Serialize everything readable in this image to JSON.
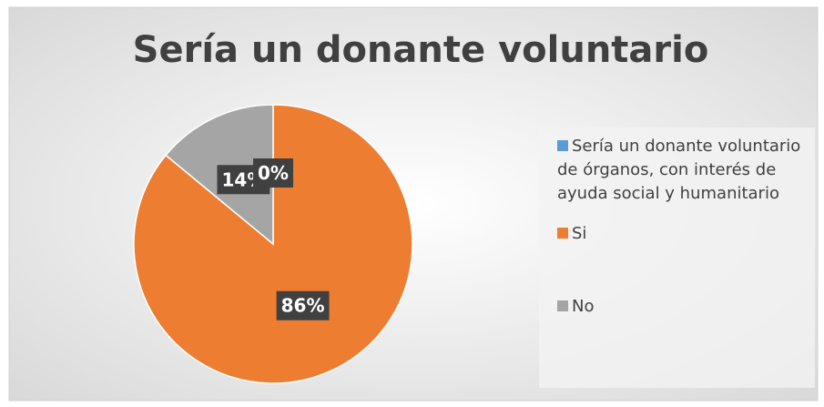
{
  "chart_data": {
    "type": "pie",
    "title": "Sería un donante voluntario",
    "categories": [
      "Sería un donante voluntario de órganos, con interés de ayuda social y humanitario",
      "Si",
      "No"
    ],
    "values": [
      0,
      86,
      14
    ],
    "value_labels": [
      "0%",
      "86%",
      "14%"
    ],
    "colors": [
      "#5b9bd5",
      "#ed7d31",
      "#a5a5a5"
    ],
    "legend": "right"
  }
}
